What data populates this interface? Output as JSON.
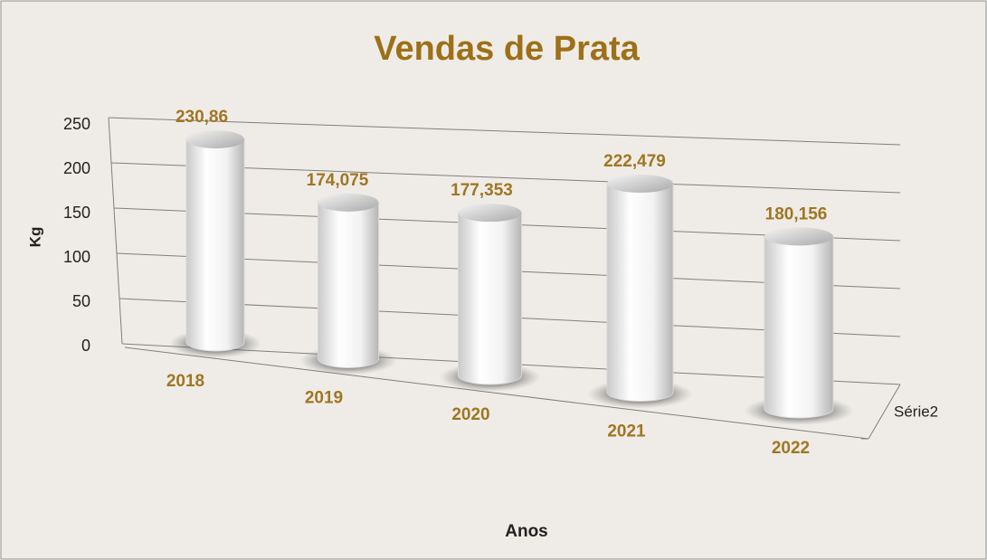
{
  "chart_data": {
    "type": "bar3d_cylinder",
    "title": "Vendas de Prata",
    "x_label": "Anos",
    "y_label": "Kg",
    "categories": [
      "2018",
      "2019",
      "2020",
      "2021",
      "2022"
    ],
    "series": [
      {
        "name": "Série2",
        "color": "#ffffff",
        "values": [
          230.86,
          174.075,
          177.353,
          222.479,
          180.156
        ],
        "value_labels": [
          "230,86",
          "174,075",
          "177,353",
          "222,479",
          "180,156"
        ]
      }
    ],
    "ylim": [
      0,
      250
    ],
    "yticks": [
      0,
      50,
      100,
      150,
      200,
      250
    ],
    "grid": true
  }
}
